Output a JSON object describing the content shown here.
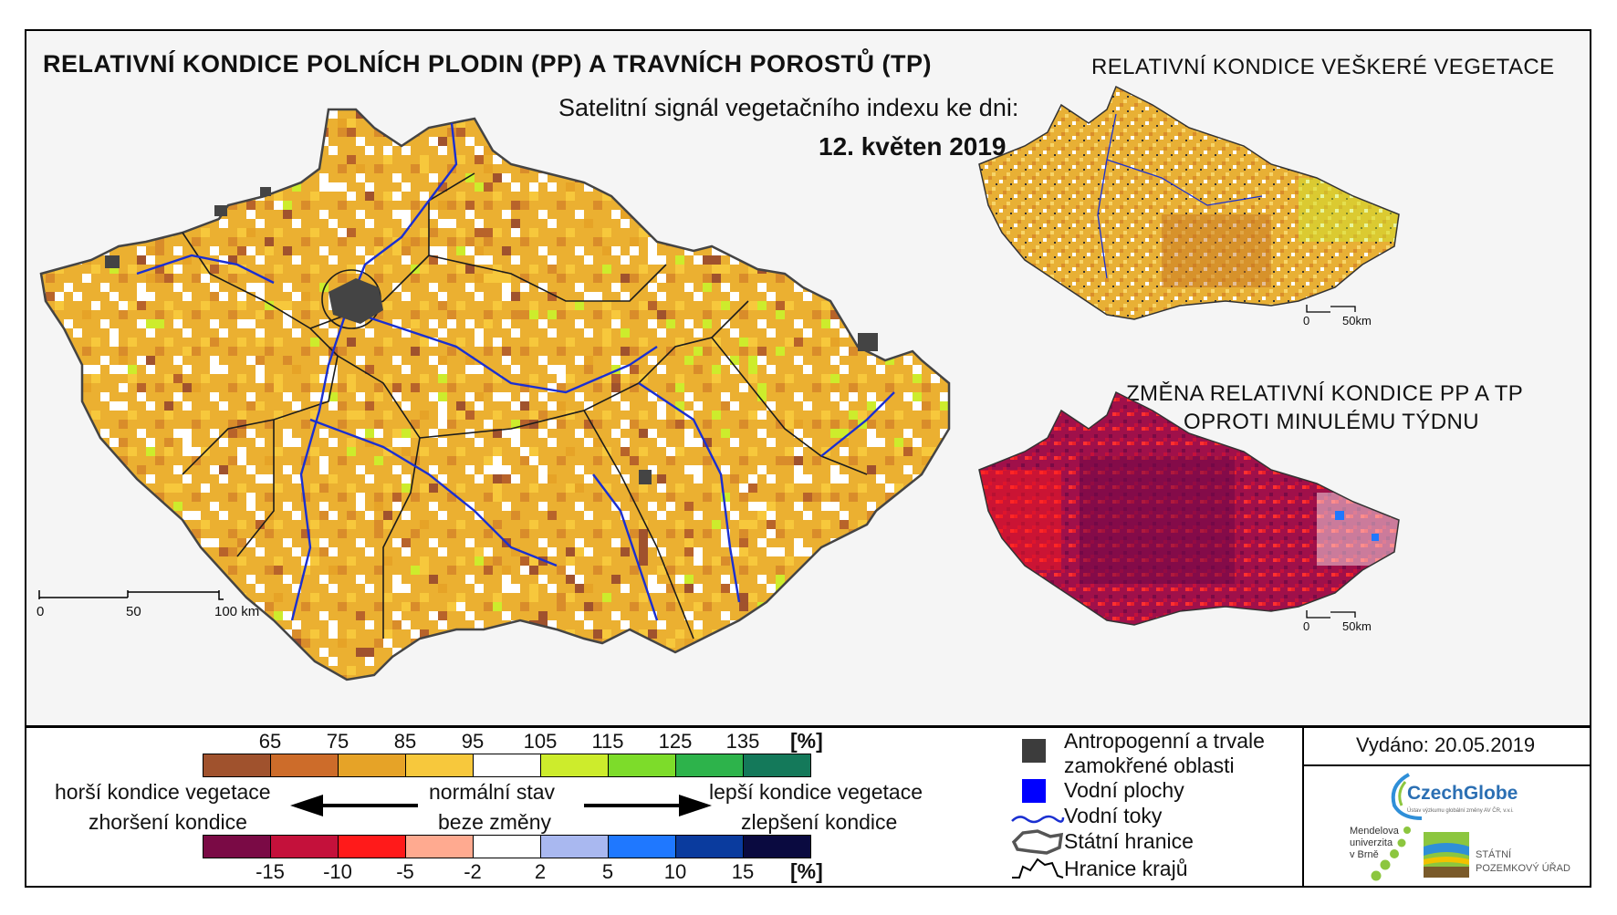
{
  "main": {
    "title": "RELATIVNÍ KONDICE POLNÍCH PLODIN (PP) A TRAVNÍCH POROSTŮ (TP)",
    "subtitle": "Satelitní signál vegetačního indexu ke dni:",
    "date": "12. květen 2019",
    "scale": {
      "labels": [
        "0",
        "50",
        "100 km"
      ]
    }
  },
  "inset_top": {
    "title": "RELATIVNÍ KONDICE VEŠKERÉ VEGETACE",
    "scale": {
      "labels": [
        "0",
        "50km"
      ]
    }
  },
  "inset_bottom": {
    "title_line1": "ZMĚNA RELATIVNÍ KONDICE PP A TP",
    "title_line2": "OPROTI MINULÉMU TÝDNU",
    "scale": {
      "labels": [
        "0",
        "50km"
      ]
    }
  },
  "legend_condition": {
    "ticks": [
      "65",
      "75",
      "85",
      "95",
      "105",
      "115",
      "125",
      "135"
    ],
    "unit": "[%]",
    "colors": [
      "#a0522d",
      "#cd6c2a",
      "#e6a327",
      "#f7c83c",
      "#ffffff",
      "#cdec2c",
      "#7ddc2a",
      "#2db34b",
      "#14795a"
    ]
  },
  "legend_change": {
    "ticks": [
      "-15",
      "-10",
      "-5",
      "-2",
      "2",
      "5",
      "10",
      "15"
    ],
    "unit": "[%]",
    "colors": [
      "#7a0a45",
      "#c4113b",
      "#ff1a1a",
      "#ffaa90",
      "#ffffff",
      "#a9b8f0",
      "#1f78ff",
      "#0a3b9e",
      "#0a0a40"
    ]
  },
  "arrows": {
    "left_top": "horší kondice vegetace",
    "left_bottom": "zhoršení kondice",
    "center_top": "normální stav",
    "center_bottom": "beze změny",
    "right_top": "lepší kondice vegetace",
    "right_bottom": "zlepšení kondice"
  },
  "symbol_legend": {
    "items": [
      {
        "label_line1": "Antropogenní a trvale",
        "label_line2": "zamokřené oblasti",
        "icon": "grey-square-icon",
        "color": "#3c3c3c"
      },
      {
        "label_line1": "Vodní plochy",
        "icon": "blue-square-icon",
        "color": "#0000ff"
      },
      {
        "label_line1": "Vodní toky",
        "icon": "river-line-icon",
        "color": "#1a2fd1"
      },
      {
        "label_line1": "Státní hranice",
        "icon": "state-border-icon",
        "color": "#555555"
      },
      {
        "label_line1": "Hranice krajů",
        "icon": "region-border-icon",
        "color": "#000000"
      }
    ]
  },
  "issued": "Vydáno: 20.05.2019",
  "logos": {
    "czechglobe": "CzechGlobe",
    "czechglobe_tag": "Ústav výzkumu globální změny AV ČR, v.v.i.",
    "mendel_1": "Mendelova",
    "mendel_2": "univerzita",
    "mendel_3": "v Brně",
    "spu_1": "STÁTNÍ",
    "spu_2": "POZEMKOVÝ ÚŘAD"
  }
}
